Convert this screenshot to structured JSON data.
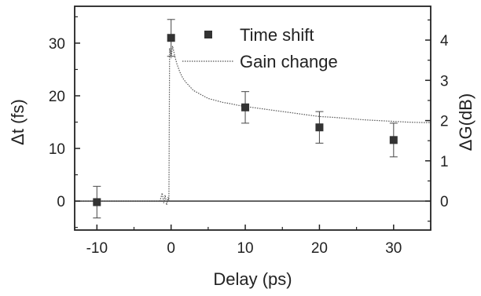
{
  "chart_data": {
    "type": "scatter",
    "xlabel": "Delay (ps)",
    "ylabel_left": "Δt (fs)",
    "ylabel_right": "ΔG(dB)",
    "xlim": [
      -13,
      35
    ],
    "ylim_left": [
      -5.5,
      37
    ],
    "ylim_right": [
      -0.72,
      4.84
    ],
    "x_ticks": [
      -10,
      0,
      10,
      20,
      30
    ],
    "y_left_ticks": [
      0,
      10,
      20,
      30
    ],
    "y_right_ticks": [
      0,
      1,
      2,
      3,
      4
    ],
    "legend_position": "top-right",
    "colors": {
      "time_shift": "#333333",
      "gain_change": "#555555",
      "zero_line": "#333333"
    },
    "series": [
      {
        "name": "Time shift",
        "type": "scatter",
        "axis": "left",
        "marker": "square",
        "points": [
          {
            "x": -10,
            "y": -0.2,
            "err": 3
          },
          {
            "x": 0,
            "y": 31,
            "err": 3.5
          },
          {
            "x": 10,
            "y": 17.8,
            "err": 3
          },
          {
            "x": 20,
            "y": 14,
            "err": 3
          },
          {
            "x": 30,
            "y": 11.6,
            "err": 3.2
          }
        ]
      },
      {
        "name": "Gain change",
        "type": "line",
        "axis": "right",
        "style": "dotted",
        "points": [
          [
            -13,
            0
          ],
          [
            -1.5,
            0
          ],
          [
            -1.2,
            0.2
          ],
          [
            -1.0,
            -0.05
          ],
          [
            -0.8,
            0.15
          ],
          [
            -0.6,
            -0.1
          ],
          [
            -0.4,
            0.1
          ],
          [
            -0.3,
            0
          ],
          [
            -0.2,
            3.8
          ],
          [
            0,
            3.55
          ],
          [
            0.2,
            3.85
          ],
          [
            0.5,
            3.6
          ],
          [
            0.8,
            3.4
          ],
          [
            1.2,
            3.2
          ],
          [
            1.6,
            3.05
          ],
          [
            2.0,
            2.95
          ],
          [
            2.5,
            2.85
          ],
          [
            3,
            2.75
          ],
          [
            3.5,
            2.7
          ],
          [
            4,
            2.65
          ],
          [
            5,
            2.55
          ],
          [
            6,
            2.5
          ],
          [
            7,
            2.45
          ],
          [
            8,
            2.42
          ],
          [
            9,
            2.38
          ],
          [
            10,
            2.35
          ],
          [
            12,
            2.3
          ],
          [
            14,
            2.25
          ],
          [
            16,
            2.2
          ],
          [
            18,
            2.15
          ],
          [
            20,
            2.1
          ],
          [
            22,
            2.08
          ],
          [
            24,
            2.05
          ],
          [
            26,
            2.02
          ],
          [
            28,
            2.0
          ],
          [
            30,
            1.98
          ],
          [
            32,
            1.96
          ],
          [
            34,
            1.95
          ],
          [
            35,
            1.95
          ]
        ]
      }
    ]
  }
}
